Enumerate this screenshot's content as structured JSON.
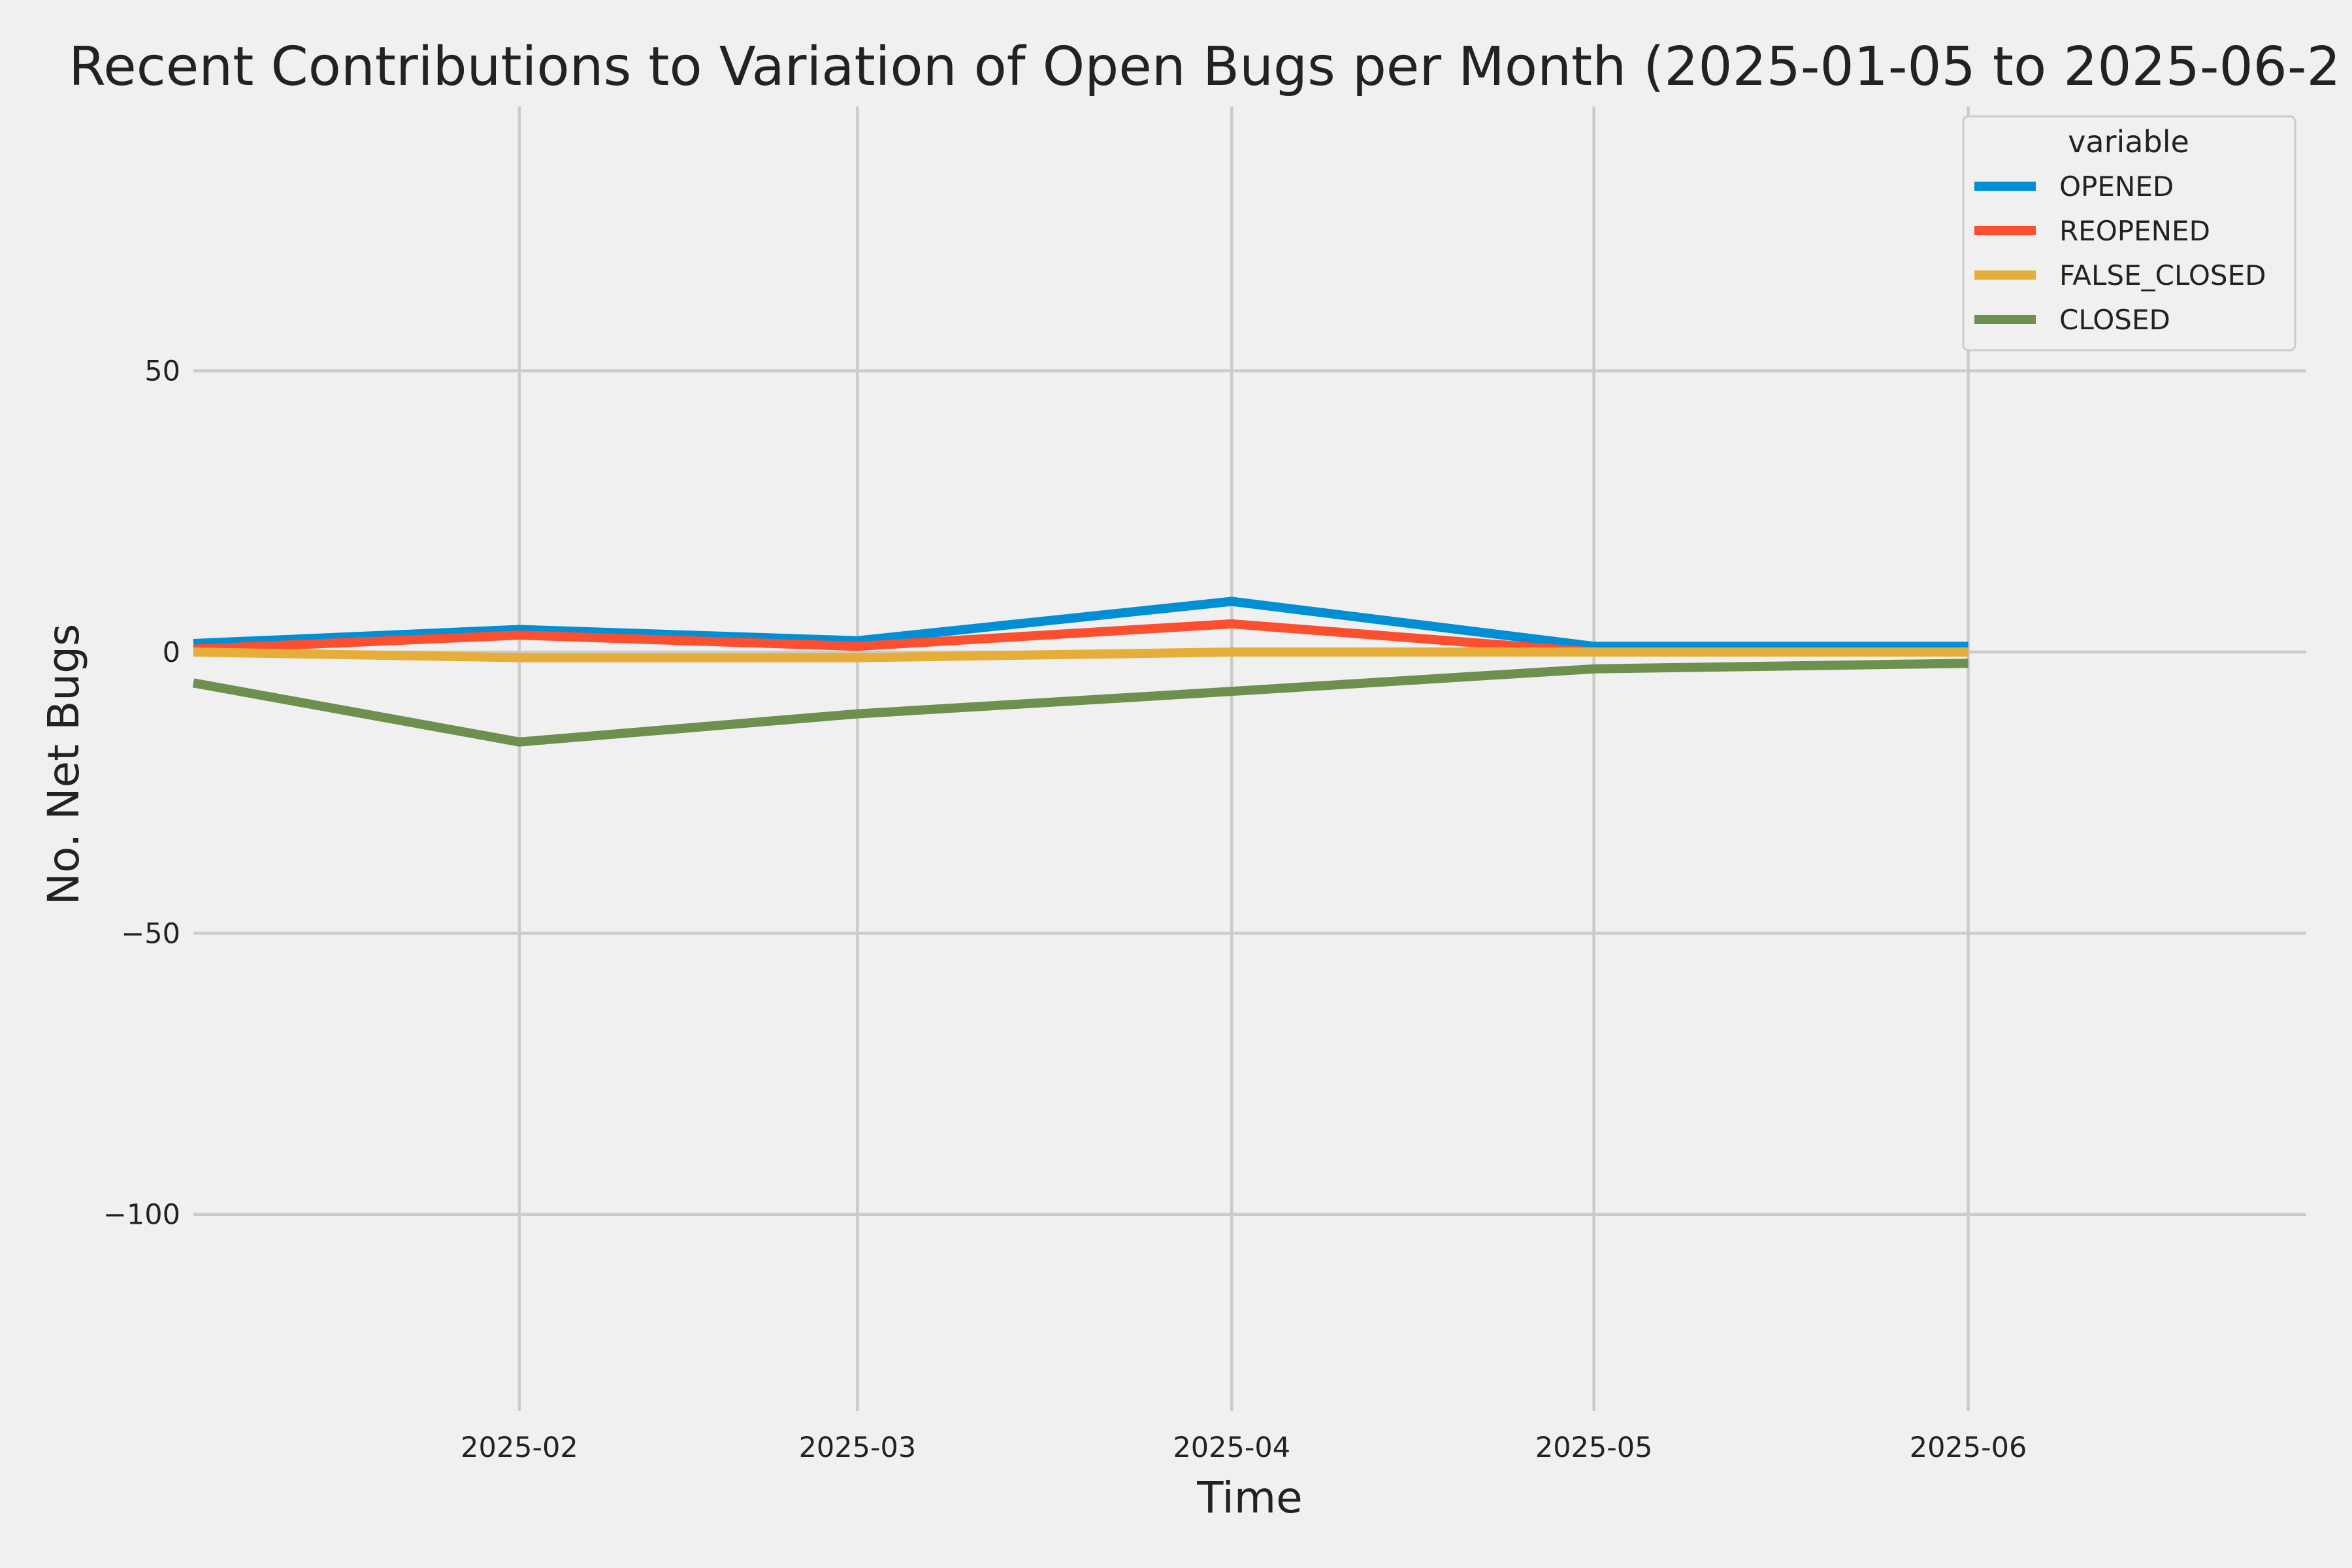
{
  "chart_data": {
    "type": "line",
    "title": "Recent Contributions to Variation of Open Bugs per Month (2025-01-05 to 2025-06-2",
    "xlabel": "Time",
    "ylabel": "No. Net Bugs",
    "x": [
      "2025-01-05",
      "2025-02-01",
      "2025-03-01",
      "2025-04-01",
      "2025-05-01",
      "2025-06-01"
    ],
    "xlim": [
      "2025-01-05",
      "2025-06-29"
    ],
    "ylim": [
      -135,
      97
    ],
    "x_ticks": [
      "2025-02-01",
      "2025-03-01",
      "2025-04-01",
      "2025-05-01",
      "2025-06-01"
    ],
    "x_tick_labels": [
      "2025-02",
      "2025-03",
      "2025-04",
      "2025-05",
      "2025-06"
    ],
    "y_ticks": [
      50,
      0,
      -50,
      -100
    ],
    "y_tick_labels": [
      "50",
      "0",
      "−50",
      "−100"
    ],
    "grid": true,
    "legend": {
      "title": "variable",
      "position": "top-right"
    },
    "series": [
      {
        "name": "OPENED",
        "color": "#008fd5",
        "values": [
          1.5,
          4,
          2,
          9,
          1,
          1
        ]
      },
      {
        "name": "REOPENED",
        "color": "#fc4f30",
        "values": [
          0.5,
          3,
          1,
          5,
          0,
          0
        ]
      },
      {
        "name": "FALSE_CLOSED",
        "color": "#e5ae38",
        "values": [
          0,
          -1,
          -1,
          0,
          0,
          0
        ]
      },
      {
        "name": "CLOSED",
        "color": "#6d904f",
        "values": [
          -5.5,
          -16,
          -11,
          -7,
          -3,
          -2
        ]
      }
    ]
  }
}
